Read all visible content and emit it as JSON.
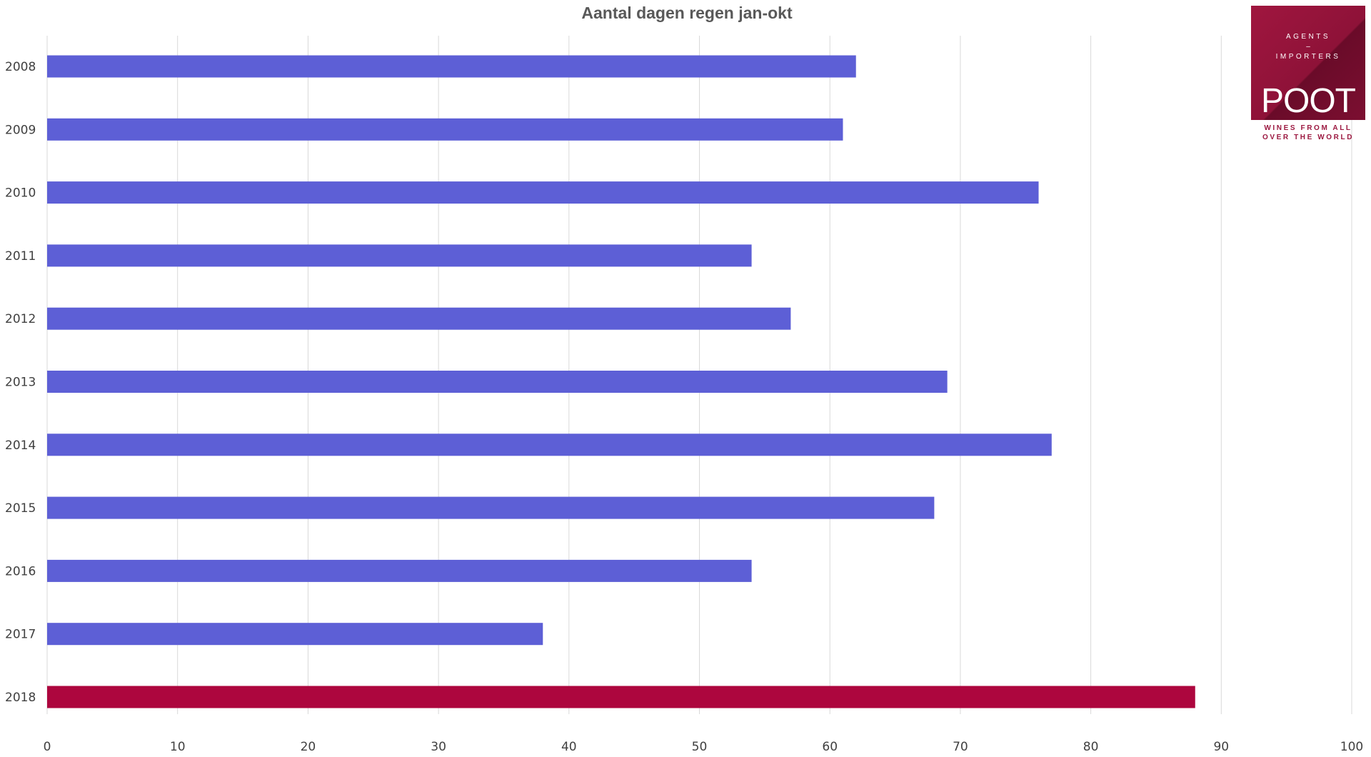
{
  "chart_data": {
    "type": "bar",
    "orientation": "horizontal",
    "title": "Aantal dagen regen jan-okt",
    "categories": [
      "2008",
      "2009",
      "2010",
      "2011",
      "2012",
      "2013",
      "2014",
      "2015",
      "2016",
      "2017",
      "2018"
    ],
    "values": [
      62,
      61,
      76,
      54,
      57,
      69,
      77,
      68,
      54,
      38,
      88
    ],
    "xlim": [
      0,
      100
    ],
    "x_ticks": [
      0,
      10,
      20,
      30,
      40,
      50,
      60,
      70,
      80,
      90,
      100
    ],
    "grid": "vertical",
    "bar_color": "#5d5fd6",
    "highlight_color": "#ad063e",
    "highlight_category": "2018",
    "grid_color": "#d9d9d9"
  },
  "logo": {
    "line1": "AGENTS",
    "line2": "–",
    "line3": "IMPORTERS",
    "word": "POOT",
    "tagline1": "WINES FROM ALL",
    "tagline2": "OVER THE WORLD"
  }
}
